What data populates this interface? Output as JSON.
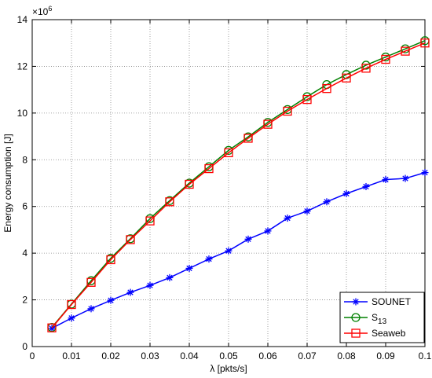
{
  "chart_data": {
    "type": "line",
    "xlabel": "λ [pkts/s]",
    "ylabel": "Energy consumption [J]",
    "y_multiplier": "×10",
    "y_multiplier_exp": "6",
    "xlim": [
      0,
      0.1
    ],
    "ylim": [
      0,
      14
    ],
    "x_ticks": [
      "0",
      "0.01",
      "0.02",
      "0.03",
      "0.04",
      "0.05",
      "0.06",
      "0.07",
      "0.08",
      "0.09",
      "0.1"
    ],
    "y_ticks": [
      "0",
      "2",
      "4",
      "6",
      "8",
      "10",
      "12",
      "14"
    ],
    "grid": true,
    "legend_position": "bottom-right",
    "x": [
      0.005,
      0.01,
      0.015,
      0.02,
      0.025,
      0.03,
      0.035,
      0.04,
      0.045,
      0.05,
      0.055,
      0.06,
      0.065,
      0.07,
      0.075,
      0.08,
      0.085,
      0.09,
      0.095,
      0.1
    ],
    "series": [
      {
        "name": "SOUNET",
        "color": "#0000ff",
        "marker": "asterisk",
        "values": [
          0.78,
          1.22,
          1.62,
          1.98,
          2.32,
          2.62,
          2.95,
          3.35,
          3.75,
          4.1,
          4.6,
          4.95,
          5.5,
          5.8,
          6.2,
          6.55,
          6.85,
          7.15,
          7.2,
          7.45
        ]
      },
      {
        "name": "S",
        "name_sub": "13",
        "color": "#008000",
        "marker": "circle",
        "values": [
          0.82,
          1.82,
          2.82,
          3.78,
          4.62,
          5.48,
          6.25,
          7.0,
          7.7,
          8.4,
          8.98,
          9.6,
          10.15,
          10.7,
          11.22,
          11.65,
          12.05,
          12.4,
          12.75,
          13.1
        ]
      },
      {
        "name": "Seaweb",
        "color": "#ff0000",
        "marker": "square",
        "values": [
          0.8,
          1.8,
          2.75,
          3.72,
          4.58,
          5.38,
          6.2,
          6.95,
          7.62,
          8.3,
          8.92,
          9.52,
          10.08,
          10.58,
          11.05,
          11.5,
          11.92,
          12.3,
          12.65,
          13.0
        ]
      }
    ]
  }
}
